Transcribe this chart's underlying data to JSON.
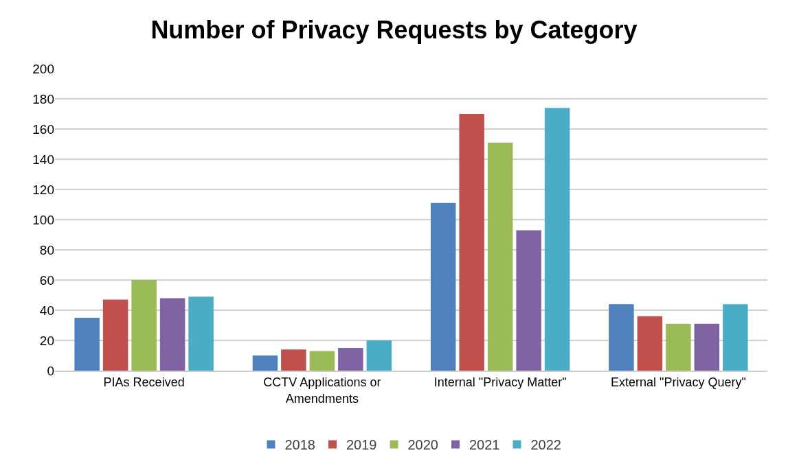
{
  "chart_data": {
    "type": "bar",
    "title": "Number of Privacy Requests by Category",
    "categories": [
      "PIAs Received",
      "CCTV Applications or\nAmendments",
      "Internal \"Privacy Matter\"",
      "External \"Privacy Query\""
    ],
    "series": [
      {
        "name": "2018",
        "color": "#4f81bd",
        "values": [
          35,
          10,
          111,
          44
        ]
      },
      {
        "name": "2019",
        "color": "#c0504d",
        "values": [
          47,
          14,
          170,
          36
        ]
      },
      {
        "name": "2020",
        "color": "#9bbb59",
        "values": [
          60,
          13,
          151,
          31
        ]
      },
      {
        "name": "2021",
        "color": "#8064a2",
        "values": [
          48,
          15,
          93,
          31
        ]
      },
      {
        "name": "2022",
        "color": "#4bacc6",
        "values": [
          49,
          20,
          174,
          44
        ]
      }
    ],
    "ylim": [
      0,
      200
    ],
    "yticks": [
      0,
      20,
      40,
      60,
      80,
      100,
      120,
      140,
      160,
      180,
      200
    ],
    "grid": "y",
    "legend": "bottom"
  }
}
